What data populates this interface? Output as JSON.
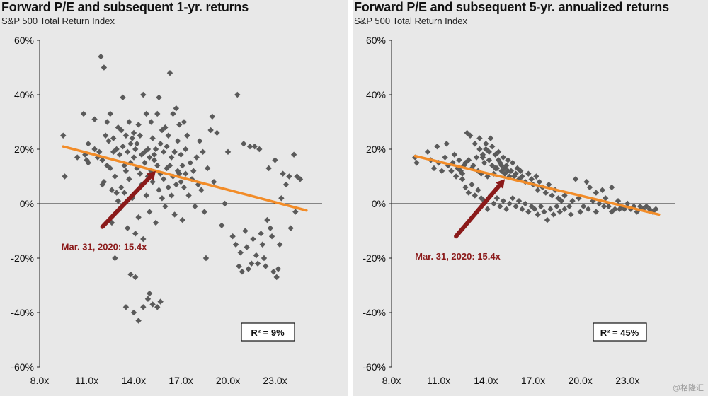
{
  "colors": {
    "panel_bg": "#e8e8e8",
    "marker": "#5a5a5a",
    "trend": "#f28c28",
    "arrow": "#8b1a1a",
    "axis": "#222222"
  },
  "watermark": "@格隆汇",
  "chart_data": [
    {
      "type": "scatter",
      "title": "Forward P/E and subsequent 1-yr. returns",
      "subtitle": "S&P 500 Total Return Index",
      "xlabel": "",
      "ylabel": "",
      "xlim": [
        8,
        26
      ],
      "ylim": [
        -60,
        60
      ],
      "xticks": [
        8,
        11,
        14,
        17,
        20,
        23
      ],
      "xtick_labels": [
        "8.0x",
        "11.0x",
        "14.0x",
        "17.0x",
        "20.0x",
        "23.0x"
      ],
      "yticks": [
        -60,
        -40,
        -20,
        0,
        20,
        40,
        60
      ],
      "ytick_labels": [
        "-60%",
        "-40%",
        "-20%",
        "0%",
        "20%",
        "40%",
        "60%"
      ],
      "grid": false,
      "trend_line": {
        "from": [
          9.5,
          21
        ],
        "to": [
          25.0,
          -2.5
        ]
      },
      "annotation": {
        "text": "Mar. 31, 2020: 15.4x",
        "arrow_from": [
          12.0,
          -8.5
        ],
        "arrow_to": [
          15.4,
          12
        ]
      },
      "r2_label": "R² =   9%",
      "points": [
        [
          9.5,
          25
        ],
        [
          9.6,
          10
        ],
        [
          10.4,
          17
        ],
        [
          10.8,
          33
        ],
        [
          10.9,
          18
        ],
        [
          11.0,
          16
        ],
        [
          11.1,
          15
        ],
        [
          11.1,
          22
        ],
        [
          11.5,
          20
        ],
        [
          11.5,
          31
        ],
        [
          11.7,
          17
        ],
        [
          11.8,
          19
        ],
        [
          11.9,
          54
        ],
        [
          12.0,
          16
        ],
        [
          12.0,
          7
        ],
        [
          12.1,
          50
        ],
        [
          12.1,
          8
        ],
        [
          12.2,
          25
        ],
        [
          12.3,
          30
        ],
        [
          12.3,
          14
        ],
        [
          12.4,
          23
        ],
        [
          12.5,
          13
        ],
        [
          12.5,
          33
        ],
        [
          12.6,
          5
        ],
        [
          12.6,
          -7
        ],
        [
          12.7,
          19
        ],
        [
          12.7,
          24
        ],
        [
          12.8,
          10
        ],
        [
          12.9,
          20
        ],
        [
          12.9,
          4
        ],
        [
          13.0,
          28
        ],
        [
          13.0,
          1
        ],
        [
          13.1,
          18
        ],
        [
          13.1,
          -2
        ],
        [
          13.2,
          27
        ],
        [
          13.2,
          6
        ],
        [
          13.3,
          39
        ],
        [
          13.3,
          21
        ],
        [
          13.4,
          14
        ],
        [
          13.4,
          4
        ],
        [
          13.5,
          25
        ],
        [
          13.5,
          12
        ],
        [
          13.6,
          -9
        ],
        [
          13.6,
          19
        ],
        [
          13.7,
          30
        ],
        [
          13.7,
          9
        ],
        [
          13.8,
          22
        ],
        [
          13.8,
          15
        ],
        [
          13.9,
          24
        ],
        [
          13.9,
          2
        ],
        [
          14.0,
          26
        ],
        [
          14.0,
          17
        ],
        [
          14.1,
          -11
        ],
        [
          14.1,
          20
        ],
        [
          14.2,
          22
        ],
        [
          14.2,
          13
        ],
        [
          14.3,
          29
        ],
        [
          14.3,
          -5
        ],
        [
          14.4,
          25
        ],
        [
          14.4,
          11
        ],
        [
          14.5,
          18
        ],
        [
          14.5,
          7
        ],
        [
          14.6,
          40
        ],
        [
          14.6,
          -13
        ],
        [
          14.7,
          19
        ],
        [
          14.7,
          15
        ],
        [
          14.8,
          33
        ],
        [
          14.8,
          3
        ],
        [
          14.9,
          20
        ],
        [
          14.9,
          10
        ],
        [
          15.0,
          17
        ],
        [
          15.0,
          -3
        ],
        [
          15.1,
          30
        ],
        [
          15.1,
          12
        ],
        [
          15.2,
          24
        ],
        [
          15.2,
          8
        ],
        [
          15.3,
          18
        ],
        [
          15.3,
          16
        ],
        [
          15.4,
          20
        ],
        [
          15.4,
          -7
        ],
        [
          15.5,
          33
        ],
        [
          15.5,
          14
        ],
        [
          15.6,
          39
        ],
        [
          15.6,
          5
        ],
        [
          15.7,
          22
        ],
        [
          15.7,
          11
        ],
        [
          15.8,
          27
        ],
        [
          15.8,
          2
        ],
        [
          15.9,
          19
        ],
        [
          15.9,
          9
        ],
        [
          16.0,
          28
        ],
        [
          16.0,
          -1
        ],
        [
          16.1,
          13
        ],
        [
          16.1,
          21
        ],
        [
          16.2,
          25
        ],
        [
          16.2,
          6
        ],
        [
          16.3,
          14
        ],
        [
          16.3,
          48
        ],
        [
          16.4,
          17
        ],
        [
          16.4,
          3
        ],
        [
          16.5,
          33
        ],
        [
          16.5,
          10
        ],
        [
          16.6,
          19
        ],
        [
          16.6,
          -4
        ],
        [
          16.7,
          35
        ],
        [
          16.7,
          7
        ],
        [
          16.8,
          23
        ],
        [
          16.8,
          12
        ],
        [
          16.9,
          11
        ],
        [
          16.9,
          29
        ],
        [
          17.0,
          8
        ],
        [
          17.0,
          18
        ],
        [
          17.1,
          14
        ],
        [
          17.1,
          -6
        ],
        [
          17.2,
          30
        ],
        [
          17.2,
          6
        ],
        [
          17.3,
          20
        ],
        [
          17.3,
          11
        ],
        [
          17.4,
          25
        ],
        [
          17.5,
          3
        ],
        [
          17.6,
          15
        ],
        [
          17.7,
          9
        ],
        [
          17.8,
          12
        ],
        [
          17.9,
          -1
        ],
        [
          18.0,
          17
        ],
        [
          18.1,
          7
        ],
        [
          18.2,
          23
        ],
        [
          18.3,
          5
        ],
        [
          18.4,
          19
        ],
        [
          18.5,
          -3
        ],
        [
          18.6,
          -20
        ],
        [
          18.7,
          13
        ],
        [
          18.9,
          27
        ],
        [
          19.0,
          32
        ],
        [
          19.1,
          8
        ],
        [
          19.3,
          26
        ],
        [
          19.6,
          -8
        ],
        [
          19.8,
          0
        ],
        [
          20.0,
          19
        ],
        [
          20.3,
          -12
        ],
        [
          20.5,
          -15
        ],
        [
          20.6,
          40
        ],
        [
          20.7,
          -23
        ],
        [
          20.8,
          -18
        ],
        [
          20.9,
          -25
        ],
        [
          21.0,
          22
        ],
        [
          21.1,
          -10
        ],
        [
          21.2,
          -16
        ],
        [
          21.3,
          -24
        ],
        [
          21.4,
          21
        ],
        [
          21.5,
          -22
        ],
        [
          21.6,
          -13
        ],
        [
          21.7,
          21
        ],
        [
          21.8,
          -19
        ],
        [
          21.9,
          -22
        ],
        [
          22.0,
          20
        ],
        [
          22.1,
          -11
        ],
        [
          22.2,
          -15
        ],
        [
          22.3,
          -20
        ],
        [
          22.4,
          -23
        ],
        [
          22.5,
          -6
        ],
        [
          22.6,
          13
        ],
        [
          22.7,
          -9
        ],
        [
          22.8,
          -12
        ],
        [
          22.9,
          -25
        ],
        [
          23.0,
          16
        ],
        [
          23.1,
          -27
        ],
        [
          23.2,
          -24
        ],
        [
          23.3,
          -15
        ],
        [
          23.4,
          2
        ],
        [
          23.5,
          11
        ],
        [
          23.7,
          7
        ],
        [
          23.9,
          10
        ],
        [
          24.0,
          -9
        ],
        [
          24.2,
          18
        ],
        [
          24.3,
          -3
        ],
        [
          24.4,
          10
        ],
        [
          24.6,
          9
        ],
        [
          12.8,
          -20
        ],
        [
          13.5,
          -38
        ],
        [
          13.8,
          -26
        ],
        [
          14.0,
          -40
        ],
        [
          14.3,
          -43
        ],
        [
          14.6,
          -38
        ],
        [
          14.9,
          -35
        ],
        [
          15.0,
          -33
        ],
        [
          15.2,
          -37
        ],
        [
          15.5,
          -38
        ],
        [
          15.7,
          -36
        ],
        [
          14.1,
          -27
        ]
      ]
    },
    {
      "type": "scatter",
      "title": "Forward P/E and subsequent 5-yr. annualized returns",
      "subtitle": "S&P 500 Total Return Index",
      "xlabel": "",
      "ylabel": "",
      "xlim": [
        8,
        26
      ],
      "ylim": [
        -60,
        60
      ],
      "xticks": [
        8,
        11,
        14,
        17,
        20,
        23
      ],
      "xtick_labels": [
        "8.0x",
        "11.0x",
        "14.0x",
        "17.0x",
        "20.0x",
        "23.0x"
      ],
      "yticks": [
        -60,
        -40,
        -20,
        0,
        20,
        40,
        60
      ],
      "ytick_labels": [
        "-60%",
        "-40%",
        "-20%",
        "0%",
        "20%",
        "40%",
        "60%"
      ],
      "grid": false,
      "trend_line": {
        "from": [
          9.5,
          17.5
        ],
        "to": [
          25.0,
          -4.0
        ]
      },
      "annotation": {
        "text": "Mar. 31, 2020: 15.4x",
        "arrow_from": [
          12.1,
          -12
        ],
        "arrow_to": [
          15.2,
          9
        ]
      },
      "r2_label": "R² =   45%",
      "points": [
        [
          9.5,
          17
        ],
        [
          9.6,
          15
        ],
        [
          10.3,
          19
        ],
        [
          10.5,
          16
        ],
        [
          10.7,
          13
        ],
        [
          10.9,
          21
        ],
        [
          11.0,
          15
        ],
        [
          11.2,
          12
        ],
        [
          11.4,
          17
        ],
        [
          11.5,
          22
        ],
        [
          11.6,
          14
        ],
        [
          11.8,
          12
        ],
        [
          11.9,
          15
        ],
        [
          12.0,
          18
        ],
        [
          12.1,
          10
        ],
        [
          12.2,
          13
        ],
        [
          12.3,
          16
        ],
        [
          12.4,
          12
        ],
        [
          12.5,
          11
        ],
        [
          12.6,
          14
        ],
        [
          12.7,
          15
        ],
        [
          12.8,
          26
        ],
        [
          12.9,
          16
        ],
        [
          13.0,
          25
        ],
        [
          13.1,
          13
        ],
        [
          13.2,
          14
        ],
        [
          13.3,
          22
        ],
        [
          13.4,
          17
        ],
        [
          13.5,
          12
        ],
        [
          13.6,
          24
        ],
        [
          13.7,
          11
        ],
        [
          13.8,
          18
        ],
        [
          13.9,
          15
        ],
        [
          14.0,
          20
        ],
        [
          14.1,
          10
        ],
        [
          14.2,
          16
        ],
        [
          14.3,
          24
        ],
        [
          14.4,
          14
        ],
        [
          14.5,
          11
        ],
        [
          14.6,
          18
        ],
        [
          14.7,
          13
        ],
        [
          14.8,
          19
        ],
        [
          14.9,
          15
        ],
        [
          15.0,
          12
        ],
        [
          15.1,
          17
        ],
        [
          15.2,
          11
        ],
        [
          15.3,
          14
        ],
        [
          15.4,
          16
        ],
        [
          15.5,
          10
        ],
        [
          15.6,
          12
        ],
        [
          15.7,
          15
        ],
        [
          15.8,
          10
        ],
        [
          15.9,
          11
        ],
        [
          16.0,
          13
        ],
        [
          16.1,
          9
        ],
        [
          16.2,
          12
        ],
        [
          16.3,
          10
        ],
        [
          16.5,
          8
        ],
        [
          16.7,
          11
        ],
        [
          16.9,
          9
        ],
        [
          17.0,
          7
        ],
        [
          17.2,
          10
        ],
        [
          17.3,
          5
        ],
        [
          17.4,
          8
        ],
        [
          17.6,
          6
        ],
        [
          17.8,
          4
        ],
        [
          18.0,
          7
        ],
        [
          18.2,
          3
        ],
        [
          18.4,
          5
        ],
        [
          18.6,
          2
        ],
        [
          18.8,
          1
        ],
        [
          19.0,
          3
        ],
        [
          19.3,
          -1
        ],
        [
          19.5,
          1
        ],
        [
          19.7,
          9
        ],
        [
          19.9,
          2
        ],
        [
          20.2,
          -1
        ],
        [
          20.4,
          8
        ],
        [
          20.6,
          6
        ],
        [
          20.8,
          1
        ],
        [
          21.0,
          4
        ],
        [
          21.2,
          0
        ],
        [
          21.4,
          5
        ],
        [
          21.6,
          2
        ],
        [
          21.8,
          -1
        ],
        [
          22.0,
          6
        ],
        [
          22.2,
          -2
        ],
        [
          22.4,
          1
        ],
        [
          22.6,
          -1
        ],
        [
          22.8,
          -2
        ],
        [
          23.0,
          0
        ],
        [
          23.2,
          -2
        ],
        [
          23.4,
          -1
        ],
        [
          23.6,
          -3
        ],
        [
          23.8,
          -1
        ],
        [
          24.0,
          -2
        ],
        [
          24.2,
          -1
        ],
        [
          24.4,
          -2
        ],
        [
          24.6,
          -3
        ],
        [
          24.8,
          -2
        ],
        [
          12.5,
          9
        ],
        [
          12.7,
          6
        ],
        [
          12.9,
          4
        ],
        [
          13.1,
          7
        ],
        [
          13.3,
          3
        ],
        [
          13.5,
          5
        ],
        [
          13.7,
          2
        ],
        [
          13.9,
          1
        ],
        [
          14.1,
          -2
        ],
        [
          14.3,
          3
        ],
        [
          14.5,
          0
        ],
        [
          14.7,
          2
        ],
        [
          14.9,
          -1
        ],
        [
          15.1,
          1
        ],
        [
          15.3,
          -2
        ],
        [
          15.5,
          0
        ],
        [
          15.7,
          2
        ],
        [
          15.9,
          -1
        ],
        [
          16.1,
          1
        ],
        [
          16.3,
          -2
        ],
        [
          16.5,
          0
        ],
        [
          16.7,
          -3
        ],
        [
          16.9,
          -1
        ],
        [
          17.1,
          -2
        ],
        [
          17.3,
          -4
        ],
        [
          17.5,
          -1
        ],
        [
          17.7,
          -3
        ],
        [
          17.9,
          -6
        ],
        [
          18.1,
          -2
        ],
        [
          18.3,
          -4
        ],
        [
          18.5,
          -1
        ],
        [
          18.7,
          -3
        ],
        [
          19.0,
          -2
        ],
        [
          19.4,
          -4
        ],
        [
          20.0,
          -3
        ],
        [
          20.5,
          -2
        ],
        [
          21.0,
          -3
        ],
        [
          21.5,
          -1
        ],
        [
          22.0,
          -3
        ],
        [
          22.5,
          -2
        ],
        [
          13.6,
          20
        ],
        [
          13.8,
          17
        ],
        [
          14.0,
          22
        ],
        [
          14.2,
          19
        ],
        [
          14.4,
          21
        ],
        [
          14.6,
          13
        ],
        [
          14.8,
          16
        ],
        [
          15.0,
          14
        ],
        [
          15.2,
          13
        ],
        [
          15.4,
          12
        ]
      ]
    }
  ]
}
